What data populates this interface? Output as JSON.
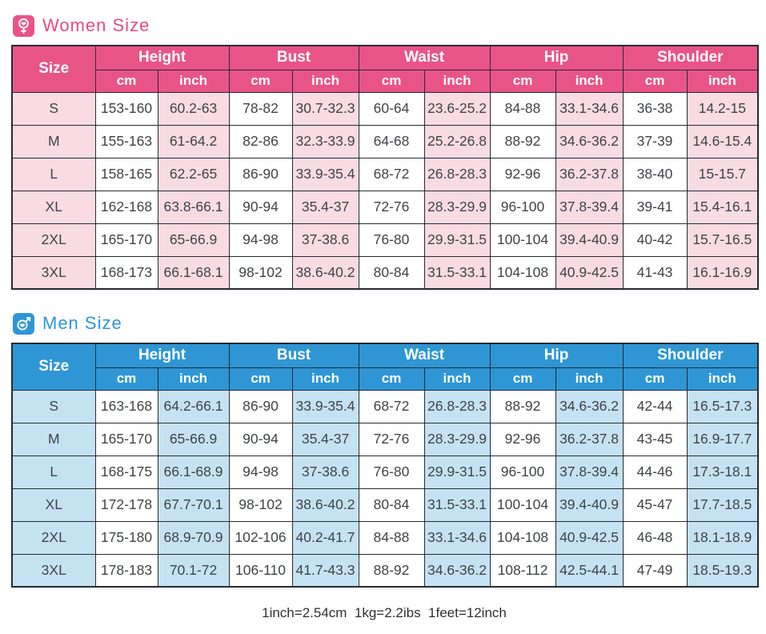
{
  "columns": {
    "size_label": "Size",
    "groups": [
      {
        "label": "Height"
      },
      {
        "label": "Bust"
      },
      {
        "label": "Waist"
      },
      {
        "label": "Hip"
      },
      {
        "label": "Shoulder"
      }
    ],
    "sub_cm": "cm",
    "sub_inch": "inch"
  },
  "women": {
    "title": "Women Size",
    "icon": "female-heart-icon",
    "theme": {
      "header_color": "#e95487",
      "tint_color": "#f9dbe3",
      "title_color": "#e8497f"
    },
    "rows": [
      {
        "size": "S",
        "cells": [
          "153-160",
          "60.2-63",
          "78-82",
          "30.7-32.3",
          "60-64",
          "23.6-25.2",
          "84-88",
          "33.1-34.6",
          "36-38",
          "14.2-15"
        ]
      },
      {
        "size": "M",
        "cells": [
          "155-163",
          "61-64.2",
          "82-86",
          "32.3-33.9",
          "64-68",
          "25.2-26.8",
          "88-92",
          "34.6-36.2",
          "37-39",
          "14.6-15.4"
        ]
      },
      {
        "size": "L",
        "cells": [
          "158-165",
          "62.2-65",
          "86-90",
          "33.9-35.4",
          "68-72",
          "26.8-28.3",
          "92-96",
          "36.2-37.8",
          "38-40",
          "15-15.7"
        ]
      },
      {
        "size": "XL",
        "cells": [
          "162-168",
          "63.8-66.1",
          "90-94",
          "35.4-37",
          "72-76",
          "28.3-29.9",
          "96-100",
          "37.8-39.4",
          "39-41",
          "15.4-16.1"
        ]
      },
      {
        "size": "2XL",
        "cells": [
          "165-170",
          "65-66.9",
          "94-98",
          "37-38.6",
          "76-80",
          "29.9-31.5",
          "100-104",
          "39.4-40.9",
          "40-42",
          "15.7-16.5"
        ]
      },
      {
        "size": "3XL",
        "cells": [
          "168-173",
          "66.1-68.1",
          "98-102",
          "38.6-40.2",
          "80-84",
          "31.5-33.1",
          "104-108",
          "40.9-42.5",
          "41-43",
          "16.1-16.9"
        ]
      }
    ]
  },
  "men": {
    "title": "Men Size",
    "icon": "male-heart-icon",
    "theme": {
      "header_color": "#2e96d4",
      "tint_color": "#c5e2f3",
      "title_color": "#2e96d4"
    },
    "rows": [
      {
        "size": "S",
        "cells": [
          "163-168",
          "64.2-66.1",
          "86-90",
          "33.9-35.4",
          "68-72",
          "26.8-28.3",
          "88-92",
          "34.6-36.2",
          "42-44",
          "16.5-17.3"
        ]
      },
      {
        "size": "M",
        "cells": [
          "165-170",
          "65-66.9",
          "90-94",
          "35.4-37",
          "72-76",
          "28.3-29.9",
          "92-96",
          "36.2-37.8",
          "43-45",
          "16.9-17.7"
        ]
      },
      {
        "size": "L",
        "cells": [
          "168-175",
          "66.1-68.9",
          "94-98",
          "37-38.6",
          "76-80",
          "29.9-31.5",
          "96-100",
          "37.8-39.4",
          "44-46",
          "17.3-18.1"
        ]
      },
      {
        "size": "XL",
        "cells": [
          "172-178",
          "67.7-70.1",
          "98-102",
          "38.6-40.2",
          "80-84",
          "31.5-33.1",
          "100-104",
          "39.4-40.9",
          "45-47",
          "17.7-18.5"
        ]
      },
      {
        "size": "2XL",
        "cells": [
          "175-180",
          "68.9-70.9",
          "102-106",
          "40.2-41.7",
          "84-88",
          "33.1-34.6",
          "104-108",
          "40.9-42.5",
          "46-48",
          "18.1-18.9"
        ]
      },
      {
        "size": "3XL",
        "cells": [
          "178-183",
          "70.1-72",
          "106-110",
          "41.7-43.3",
          "88-92",
          "34.6-36.2",
          "108-112",
          "42.5-44.1",
          "47-49",
          "18.5-19.3"
        ]
      }
    ]
  },
  "footer": {
    "note": "1inch=2.54cm  1kg=2.2ibs  1feet=12inch"
  }
}
